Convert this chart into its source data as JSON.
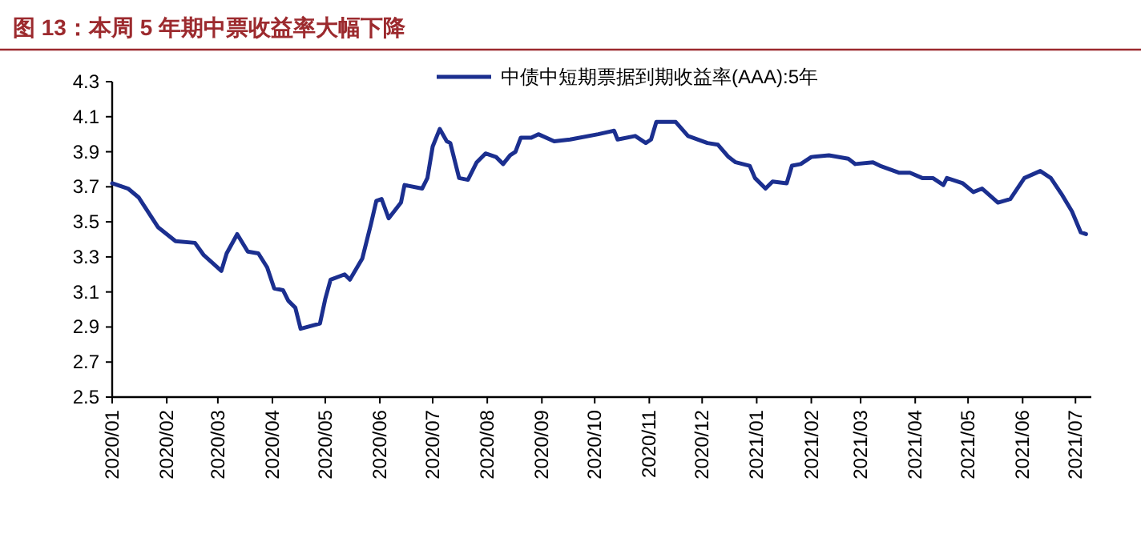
{
  "chart_data": {
    "type": "line",
    "title": "图 13：本周 5 年期中票收益率大幅下降",
    "legend": "top",
    "x": [
      "2020-01-01",
      "2020-01-10",
      "2020-01-16",
      "2020-01-27",
      "2020-02-06",
      "2020-02-17",
      "2020-02-22",
      "2020-03-03",
      "2020-03-06",
      "2020-03-12",
      "2020-03-18",
      "2020-03-24",
      "2020-03-29",
      "2020-04-02",
      "2020-04-07",
      "2020-04-10",
      "2020-04-14",
      "2020-04-17",
      "2020-04-28",
      "2020-05-01",
      "2020-05-04",
      "2020-05-12",
      "2020-05-15",
      "2020-05-22",
      "2020-05-27",
      "2020-05-30",
      "2020-06-02",
      "2020-06-06",
      "2020-06-13",
      "2020-06-15",
      "2020-06-25",
      "2020-06-28",
      "2020-07-01",
      "2020-07-05",
      "2020-07-09",
      "2020-07-11",
      "2020-07-16",
      "2020-07-21",
      "2020-07-26",
      "2020-07-31",
      "2020-08-06",
      "2020-08-10",
      "2020-08-14",
      "2020-08-17",
      "2020-08-20",
      "2020-08-26",
      "2020-08-30",
      "2020-09-08",
      "2020-09-17",
      "2020-10-03",
      "2020-10-12",
      "2020-10-14",
      "2020-10-24",
      "2020-10-30",
      "2020-11-02",
      "2020-11-05",
      "2020-11-16",
      "2020-11-23",
      "2020-12-04",
      "2020-12-10",
      "2020-12-16",
      "2020-12-20",
      "2020-12-28",
      "2020-12-31",
      "2021-01-06",
      "2021-01-10",
      "2021-01-18",
      "2021-01-21",
      "2021-01-26",
      "2021-02-01",
      "2021-02-11",
      "2021-02-22",
      "2021-02-26",
      "2021-03-08",
      "2021-03-12",
      "2021-03-23",
      "2021-03-29",
      "2021-04-05",
      "2021-04-11",
      "2021-04-17",
      "2021-04-19",
      "2021-04-28",
      "2021-05-04",
      "2021-05-09",
      "2021-05-18",
      "2021-05-25",
      "2021-06-02",
      "2021-06-11",
      "2021-06-17",
      "2021-06-23",
      "2021-06-29",
      "2021-07-04",
      "2021-07-07"
    ],
    "series": [
      {
        "name": "中债中短期票据到期收益率(AAA):5年",
        "color": "#1b2f8f",
        "values": [
          3.72,
          3.69,
          3.64,
          3.47,
          3.39,
          3.38,
          3.31,
          3.22,
          3.32,
          3.43,
          3.33,
          3.32,
          3.24,
          3.12,
          3.11,
          3.05,
          3.01,
          2.89,
          2.92,
          3.06,
          3.17,
          3.2,
          3.17,
          3.29,
          3.49,
          3.62,
          3.63,
          3.52,
          3.61,
          3.71,
          3.69,
          3.75,
          3.93,
          4.03,
          3.96,
          3.95,
          3.75,
          3.74,
          3.84,
          3.89,
          3.87,
          3.83,
          3.88,
          3.9,
          3.98,
          3.98,
          4.0,
          3.96,
          3.97,
          4.0,
          4.02,
          3.97,
          3.99,
          3.95,
          3.97,
          4.07,
          4.07,
          3.99,
          3.95,
          3.94,
          3.87,
          3.84,
          3.82,
          3.75,
          3.69,
          3.73,
          3.72,
          3.82,
          3.83,
          3.87,
          3.88,
          3.86,
          3.83,
          3.84,
          3.82,
          3.78,
          3.78,
          3.75,
          3.75,
          3.71,
          3.75,
          3.72,
          3.67,
          3.69,
          3.61,
          3.63,
          3.75,
          3.79,
          3.75,
          3.66,
          3.56,
          3.44,
          3.43
        ]
      }
    ],
    "xlim": [
      "2020-01-01",
      "2021-07-10"
    ],
    "xticks": [
      {
        "value": "2020-01-01",
        "label": "2020/01"
      },
      {
        "value": "2020-02-01",
        "label": "2020/02"
      },
      {
        "value": "2020-03-01",
        "label": "2020/03"
      },
      {
        "value": "2020-04-01",
        "label": "2020/04"
      },
      {
        "value": "2020-05-01",
        "label": "2020/05"
      },
      {
        "value": "2020-06-01",
        "label": "2020/06"
      },
      {
        "value": "2020-07-01",
        "label": "2020/07"
      },
      {
        "value": "2020-08-01",
        "label": "2020/08"
      },
      {
        "value": "2020-09-01",
        "label": "2020/09"
      },
      {
        "value": "2020-10-01",
        "label": "2020/10"
      },
      {
        "value": "2020-11-01",
        "label": "2020/11"
      },
      {
        "value": "2020-12-01",
        "label": "2020/12"
      },
      {
        "value": "2021-01-01",
        "label": "2021/01"
      },
      {
        "value": "2021-02-01",
        "label": "2021/02"
      },
      {
        "value": "2021-03-01",
        "label": "2021/03"
      },
      {
        "value": "2021-04-01",
        "label": "2021/04"
      },
      {
        "value": "2021-05-01",
        "label": "2021/05"
      },
      {
        "value": "2021-06-01",
        "label": "2021/06"
      },
      {
        "value": "2021-07-01",
        "label": "2021/07"
      }
    ],
    "ylim": [
      2.5,
      4.3
    ],
    "yticks": [
      2.5,
      2.7,
      2.9,
      3.1,
      3.3,
      3.5,
      3.7,
      3.9,
      4.1,
      4.3
    ]
  }
}
